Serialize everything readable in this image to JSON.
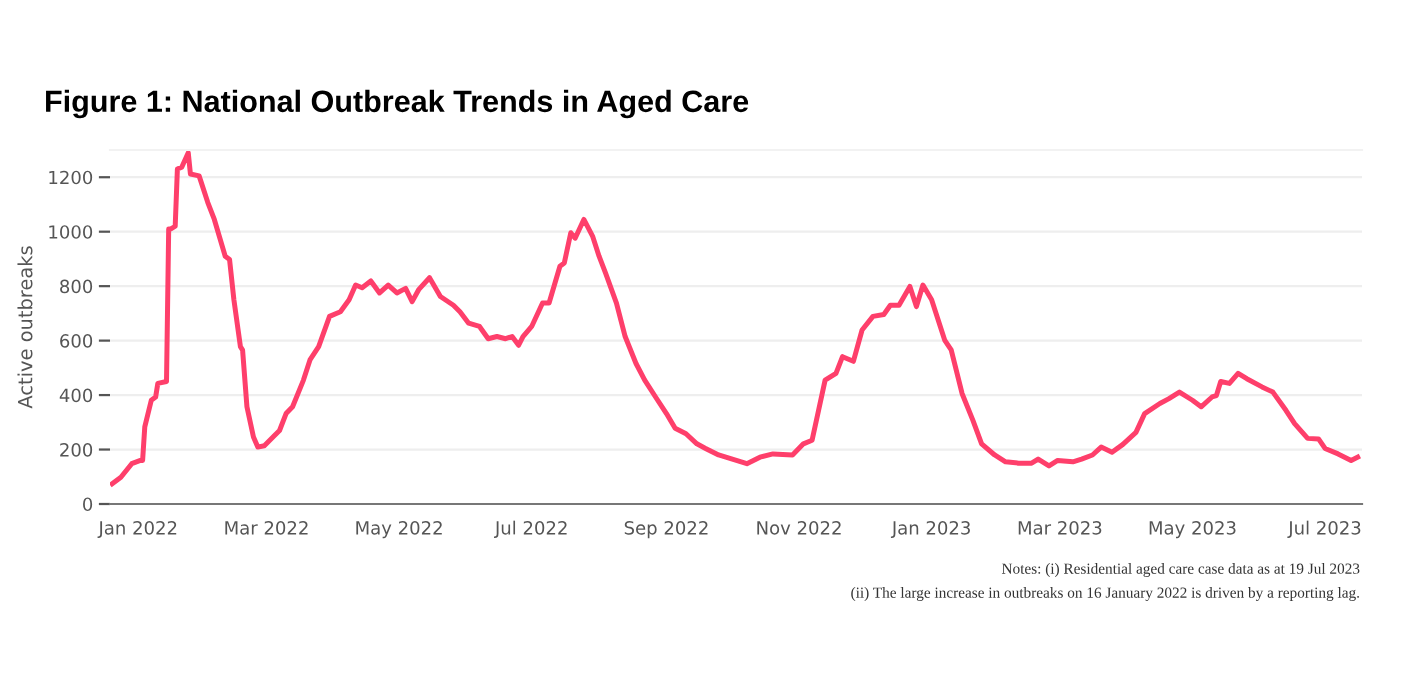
{
  "chart_data": {
    "type": "line",
    "title": "Figure 1: National Outbreak Trends in Aged Care",
    "ylabel": "Active outbreaks",
    "xlim": [
      "2021-12-19",
      "2023-07-18"
    ],
    "ylim": [
      0,
      1300
    ],
    "yticks": [
      0,
      200,
      400,
      600,
      800,
      1000,
      1200
    ],
    "xticks": [
      {
        "value": "2022-01-01",
        "label": "Jan 2022"
      },
      {
        "value": "2022-03-01",
        "label": "Mar 2022"
      },
      {
        "value": "2022-05-01",
        "label": "May 2022"
      },
      {
        "value": "2022-07-01",
        "label": "Jul 2022"
      },
      {
        "value": "2022-09-01",
        "label": "Sep 2022"
      },
      {
        "value": "2022-11-01",
        "label": "Nov 2022"
      },
      {
        "value": "2023-01-01",
        "label": "Jan 2023"
      },
      {
        "value": "2023-03-01",
        "label": "Mar 2023"
      },
      {
        "value": "2023-05-01",
        "label": "May 2023"
      },
      {
        "value": "2023-07-01",
        "label": "Jul 2023"
      }
    ],
    "grid": "y",
    "marker": "none",
    "line_style": "solid",
    "annotations": [
      "Notes: (i) Residential aged care case data as at 19 Jul 2023",
      "(ii) The large increase in outbreaks on 16 January 2022 is driven by a reporting lag."
    ],
    "series": [
      {
        "color": "#fe3f6b",
        "x": [
          "2021-12-20",
          "2021-12-24",
          "2021-12-29",
          "2022-01-02",
          "2022-01-03",
          "2022-01-04",
          "2022-01-07",
          "2022-01-09",
          "2022-01-10",
          "2022-01-14",
          "2022-01-15",
          "2022-01-16",
          "2022-01-18",
          "2022-01-19",
          "2022-01-21",
          "2022-01-24",
          "2022-01-25",
          "2022-01-29",
          "2022-02-02",
          "2022-02-05",
          "2022-02-10",
          "2022-02-12",
          "2022-02-14",
          "2022-02-17",
          "2022-02-18",
          "2022-02-20",
          "2022-02-23",
          "2022-02-25",
          "2022-02-28",
          "2022-03-04",
          "2022-03-07",
          "2022-03-10",
          "2022-03-13",
          "2022-03-18",
          "2022-03-21",
          "2022-03-25",
          "2022-03-30",
          "2022-04-04",
          "2022-04-08",
          "2022-04-11",
          "2022-04-14",
          "2022-04-18",
          "2022-04-22",
          "2022-04-26",
          "2022-04-30",
          "2022-05-04",
          "2022-05-07",
          "2022-05-10",
          "2022-05-15",
          "2022-05-20",
          "2022-05-26",
          "2022-05-29",
          "2022-06-02",
          "2022-06-07",
          "2022-06-11",
          "2022-06-15",
          "2022-06-19",
          "2022-06-22",
          "2022-06-25",
          "2022-06-27",
          "2022-07-01",
          "2022-07-06",
          "2022-07-09",
          "2022-07-14",
          "2022-07-16",
          "2022-07-19",
          "2022-07-21",
          "2022-07-25",
          "2022-07-29",
          "2022-08-01",
          "2022-08-04",
          "2022-08-09",
          "2022-08-13",
          "2022-08-18",
          "2022-08-22",
          "2022-08-27",
          "2022-09-01",
          "2022-09-05",
          "2022-09-10",
          "2022-09-15",
          "2022-09-19",
          "2022-09-25",
          "2022-10-08",
          "2022-10-14",
          "2022-10-20",
          "2022-10-29",
          "2022-11-03",
          "2022-11-07",
          "2022-11-10",
          "2022-11-13",
          "2022-11-18",
          "2022-11-21",
          "2022-11-26",
          "2022-11-30",
          "2022-12-05",
          "2022-12-10",
          "2022-12-13",
          "2022-12-17",
          "2022-12-22",
          "2022-12-25",
          "2022-12-28",
          "2023-01-01",
          "2023-01-07",
          "2023-01-10",
          "2023-01-15",
          "2023-01-20",
          "2023-01-24",
          "2023-01-30",
          "2023-02-04",
          "2023-02-10",
          "2023-02-16",
          "2023-02-19",
          "2023-02-24",
          "2023-02-28",
          "2023-03-07",
          "2023-03-11",
          "2023-03-16",
          "2023-03-20",
          "2023-03-25",
          "2023-03-30",
          "2023-04-05",
          "2023-04-09",
          "2023-04-16",
          "2023-04-20",
          "2023-04-25",
          "2023-05-01",
          "2023-05-05",
          "2023-05-10",
          "2023-05-12",
          "2023-05-14",
          "2023-05-18",
          "2023-05-22",
          "2023-05-26",
          "2023-06-02",
          "2023-06-07",
          "2023-06-13",
          "2023-06-17",
          "2023-06-23",
          "2023-06-28",
          "2023-07-01",
          "2023-07-07",
          "2023-07-13",
          "2023-07-16"
        ],
        "values": [
          74,
          98,
          148,
          160,
          160,
          283,
          381,
          393,
          443,
          450,
          1010,
          1010,
          1020,
          1230,
          1237,
          1290,
          1212,
          1205,
          1107,
          1045,
          910,
          898,
          750,
          578,
          565,
          357,
          246,
          209,
          214,
          246,
          270,
          332,
          357,
          455,
          529,
          578,
          689,
          706,
          750,
          804,
          794,
          819,
          775,
          804,
          775,
          792,
          743,
          787,
          831,
          762,
          730,
          706,
          664,
          652,
          607,
          615,
          607,
          615,
          583,
          615,
          652,
          738,
          738,
          873,
          885,
          996,
          976,
          1045,
          984,
          910,
          848,
          738,
          615,
          516,
          455,
          393,
          332,
          278,
          258,
          221,
          204,
          180,
          148,
          172,
          184,
          180,
          221,
          234,
          344,
          455,
          480,
          541,
          524,
          639,
          689,
          696,
          730,
          730,
          799,
          725,
          804,
          750,
          602,
          566,
          406,
          307,
          221,
          180,
          155,
          150,
          150,
          165,
          140,
          160,
          155,
          165,
          180,
          209,
          190,
          219,
          263,
          332,
          369,
          386,
          411,
          381,
          357,
          393,
          398,
          450,
          443,
          480,
          460,
          430,
          411,
          344,
          295,
          241,
          239,
          204,
          184,
          160,
          172
        ]
      }
    ]
  }
}
